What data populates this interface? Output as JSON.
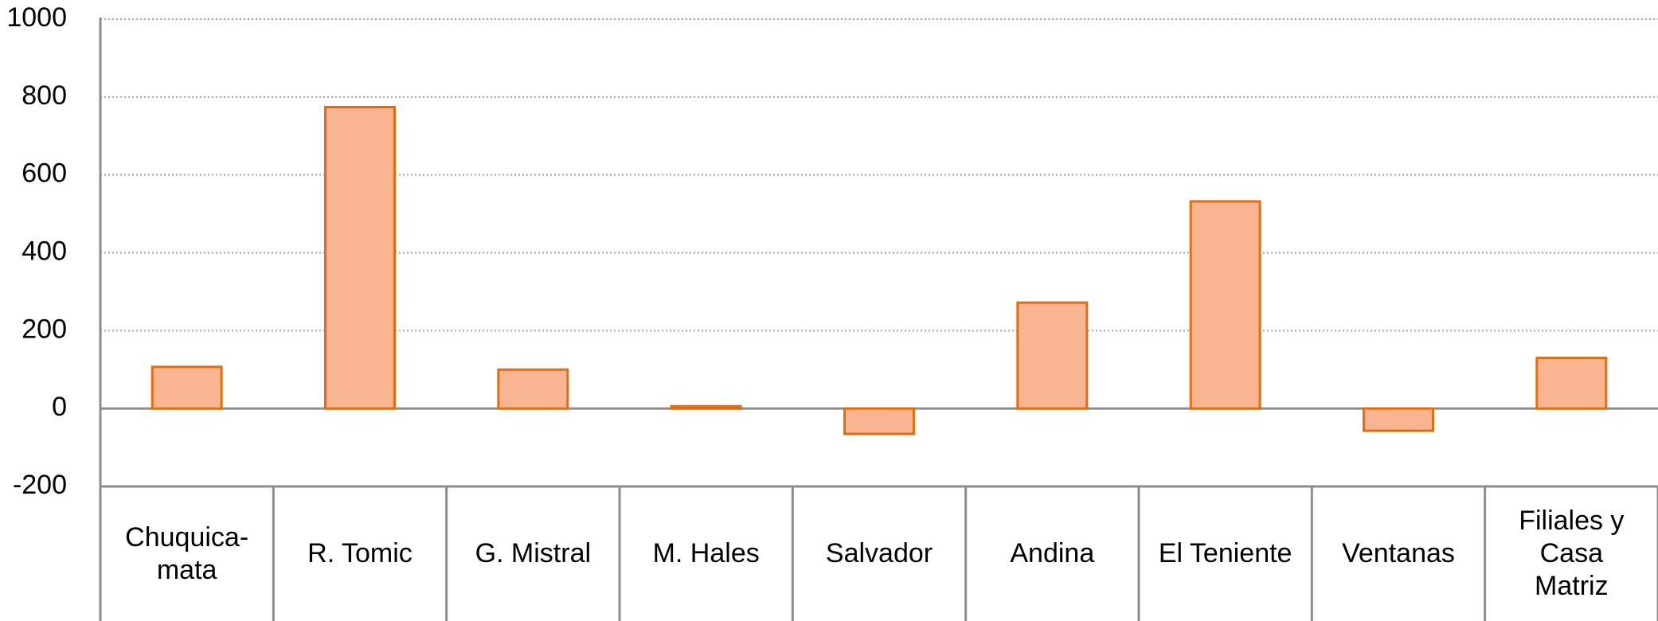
{
  "chart_data": {
    "type": "bar",
    "categories": [
      "Chuquica-\nmata",
      "R. Tomic",
      "G. Mistral",
      "M. Hales",
      "Salvador",
      "Andina",
      "El Teniente",
      "Ventanas",
      "Filiales y\nCasa\nMatriz"
    ],
    "values": [
      107,
      774,
      100,
      6,
      -65,
      272,
      532,
      -57,
      130
    ],
    "color": "#f9b591",
    "edge_color": "#e46c0a",
    "ylim": [
      -200,
      1000
    ],
    "yticks": [
      -200,
      0,
      200,
      400,
      600,
      800,
      1000
    ],
    "grid": true
  }
}
